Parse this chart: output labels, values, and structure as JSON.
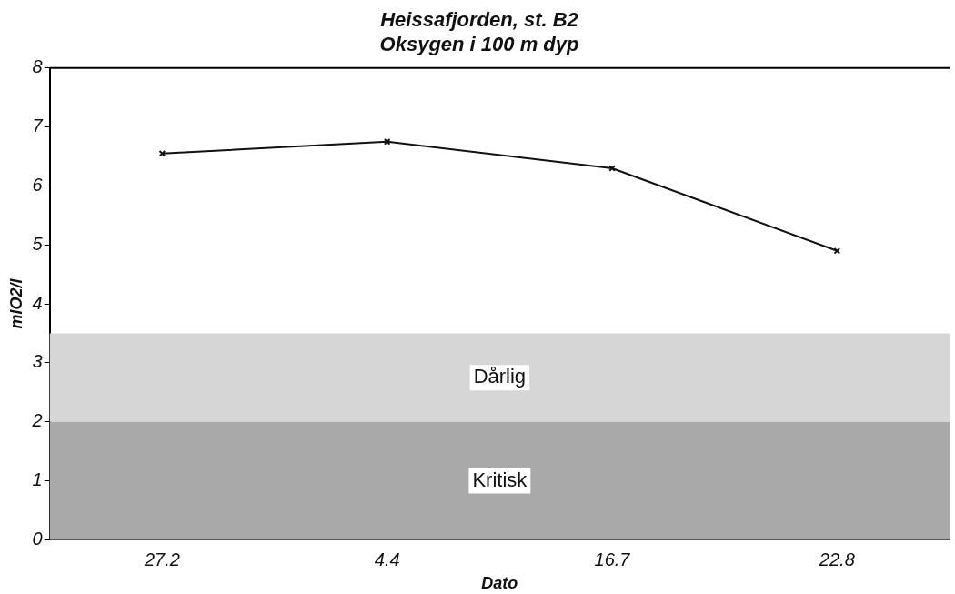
{
  "chart_data": {
    "type": "line",
    "title": "Heissafjorden, st. B2",
    "subtitle": "Oksygen i 100 m dyp",
    "xlabel": "Dato",
    "ylabel": "mlO2/l",
    "categories": [
      "27.2",
      "4.4",
      "16.7",
      "22.8"
    ],
    "series": [
      {
        "color": "#111111",
        "values": [
          6.55,
          6.75,
          6.3,
          4.9
        ]
      }
    ],
    "ylim": [
      0,
      8
    ],
    "yticks": [
      0,
      1,
      2,
      3,
      4,
      5,
      6,
      7,
      8
    ],
    "grid": false,
    "legend": false,
    "marker": "cross",
    "line_style": "solid",
    "bands": [
      {
        "axis": "y",
        "from": 2,
        "to": 3.5,
        "label": "Dårlig",
        "color": "#d6d6d6"
      },
      {
        "axis": "y",
        "from": 0,
        "to": 2,
        "label": "Kritisk",
        "color": "#a9a9a9"
      }
    ]
  }
}
